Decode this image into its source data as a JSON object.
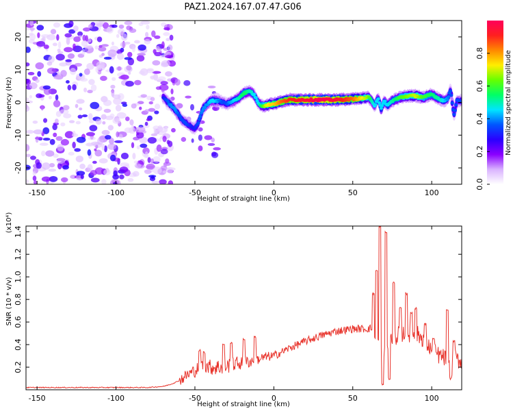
{
  "title": "PAZ1.2024.167.07.47.G06",
  "chart_data": [
    {
      "type": "heatmap",
      "name": "spectrogram",
      "xlabel": "Height of straight line (km)",
      "ylabel": "Frequency (Hz)",
      "xlim": [
        -157,
        119
      ],
      "ylim": [
        -25,
        25
      ],
      "xticks": [
        -150,
        -100,
        -50,
        0,
        50,
        100
      ],
      "yticks": [
        -20,
        -10,
        0,
        10,
        20
      ],
      "colorbar": {
        "label": "Normalized spectral amplitude",
        "range": [
          0,
          1
        ],
        "ticks": [
          0.0,
          0.2,
          0.4,
          0.6,
          0.8
        ],
        "colors": [
          "#ffffff",
          "#d9b3ff",
          "#8a00ff",
          "#2a00ff",
          "#0055ff",
          "#00e5ff",
          "#00ff66",
          "#66ff00",
          "#ffee00",
          "#ff8800",
          "#ff1f1f",
          "#ff005a"
        ]
      },
      "noise_region": {
        "x": [
          -157,
          -70
        ],
        "amplitude": [
          0.05,
          0.3
        ]
      },
      "ridge": {
        "x": [
          -70,
          -68,
          -65,
          -62,
          -60,
          -58,
          -55,
          -52,
          -50,
          -48,
          -45,
          -42,
          -40,
          -37,
          -35,
          -32,
          -30,
          -28,
          -25,
          -22,
          -20,
          -18,
          -15,
          -12,
          -10,
          -8,
          -5,
          -2,
          0,
          5,
          10,
          20,
          30,
          40,
          50,
          55,
          60,
          62,
          64,
          66,
          68,
          70,
          72,
          75,
          80,
          85,
          90,
          95,
          100,
          105,
          108,
          110,
          112,
          114,
          116,
          119
        ],
        "y": [
          1.5,
          0.5,
          -1,
          -2.5,
          -4,
          -5.5,
          -6.5,
          -7.5,
          -8,
          -6.5,
          -2,
          -0.5,
          0.5,
          0.5,
          0.5,
          0,
          -0.5,
          0,
          0.5,
          1.5,
          2.5,
          3,
          3.5,
          2,
          0,
          -1,
          -1,
          -0.5,
          -0.5,
          0.2,
          0.8,
          0.8,
          0.8,
          0.8,
          1,
          1.2,
          1.5,
          0.5,
          -1,
          1.5,
          -2,
          0.5,
          -1,
          0.5,
          1.5,
          2,
          2,
          1.5,
          2.5,
          1,
          0.5,
          1,
          4,
          -4,
          0.5,
          0.5
        ],
        "amplitude": [
          0.3,
          0.35,
          0.4,
          0.4,
          0.35,
          0.35,
          0.35,
          0.3,
          0.3,
          0.35,
          0.4,
          0.4,
          0.45,
          0.45,
          0.4,
          0.35,
          0.35,
          0.4,
          0.45,
          0.5,
          0.55,
          0.55,
          0.5,
          0.45,
          0.45,
          0.55,
          0.7,
          0.75,
          0.75,
          0.85,
          0.9,
          0.95,
          1.0,
          0.95,
          0.85,
          0.75,
          0.65,
          0.5,
          0.45,
          0.45,
          0.45,
          0.45,
          0.45,
          0.5,
          0.6,
          0.65,
          0.7,
          0.6,
          0.55,
          0.5,
          0.45,
          0.4,
          0.35,
          0.35,
          0.35,
          0.35
        ]
      }
    },
    {
      "type": "line",
      "name": "snr",
      "xlabel": "Height of straight line (km)",
      "ylabel": "SNR (10 * v/v)",
      "yunit": "(x10⁴)",
      "xlim": [
        -157,
        119
      ],
      "ylim": [
        0,
        1.45
      ],
      "xticks": [
        -150,
        -100,
        -50,
        0,
        50,
        100
      ],
      "yticks": [
        0.2,
        0.4,
        0.6,
        0.8,
        1.0,
        1.2,
        1.4
      ],
      "ytick_labels": [
        "0.2",
        "0.4",
        "0.6",
        "0.8",
        "1.0",
        "1.2",
        "1.4"
      ],
      "color": "#e8332b",
      "series": [
        {
          "x": [
            -157,
            -140,
            -120,
            -100,
            -80,
            -70,
            -65,
            -60,
            -55,
            -50,
            -45,
            -40,
            -35,
            -30,
            -25,
            -20,
            -15,
            -10,
            -5,
            0,
            10,
            20,
            30,
            40,
            50,
            55,
            60,
            63,
            65,
            67,
            70,
            72,
            75,
            80,
            85,
            90,
            95,
            100,
            105,
            110,
            113,
            115,
            117,
            119
          ],
          "y": [
            0.02,
            0.02,
            0.02,
            0.02,
            0.02,
            0.03,
            0.05,
            0.08,
            0.13,
            0.17,
            0.22,
            0.2,
            0.2,
            0.21,
            0.23,
            0.24,
            0.25,
            0.27,
            0.29,
            0.3,
            0.37,
            0.43,
            0.48,
            0.52,
            0.54,
            0.54,
            0.54,
            0.55,
            0.35,
            0.42,
            0.35,
            0.4,
            0.45,
            0.5,
            0.5,
            0.5,
            0.45,
            0.35,
            0.3,
            0.27,
            0.2,
            0.28,
            0.26,
            0.26
          ]
        }
      ],
      "spikes": [
        {
          "x": -47,
          "y": 0.35
        },
        {
          "x": -44,
          "y": 0.33
        },
        {
          "x": -32,
          "y": 0.4
        },
        {
          "x": -27,
          "y": 0.42
        },
        {
          "x": -19,
          "y": 0.45
        },
        {
          "x": -12,
          "y": 0.47
        },
        {
          "x": 63,
          "y": 0.85
        },
        {
          "x": 65,
          "y": 1.05
        },
        {
          "x": 67,
          "y": 1.45
        },
        {
          "x": 69,
          "y": 0.05
        },
        {
          "x": 71,
          "y": 1.4
        },
        {
          "x": 73,
          "y": 0.1
        },
        {
          "x": 76,
          "y": 0.95
        },
        {
          "x": 80,
          "y": 0.72
        },
        {
          "x": 84,
          "y": 0.85
        },
        {
          "x": 87,
          "y": 0.68
        },
        {
          "x": 90,
          "y": 0.72
        },
        {
          "x": 96,
          "y": 0.58
        },
        {
          "x": 101,
          "y": 0.45
        },
        {
          "x": 110,
          "y": 0.7
        },
        {
          "x": 112,
          "y": 0.1
        },
        {
          "x": 114,
          "y": 0.43
        }
      ]
    }
  ]
}
